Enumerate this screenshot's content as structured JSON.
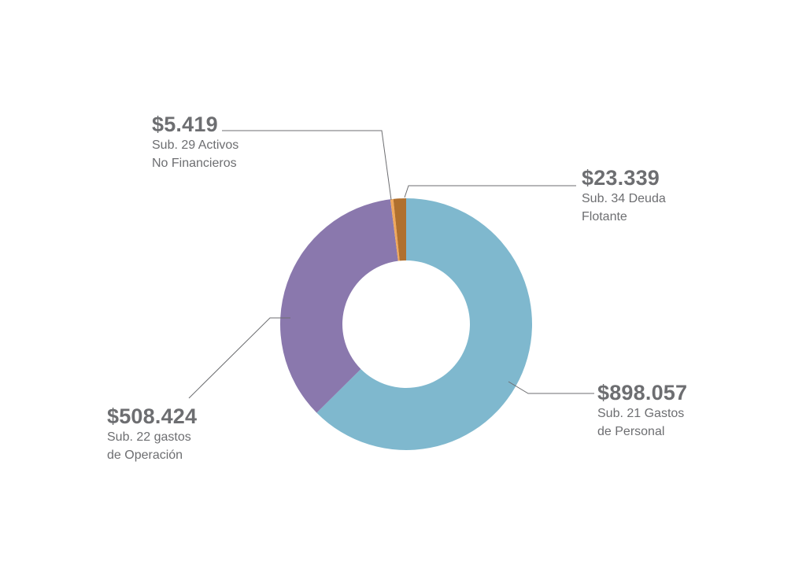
{
  "chart_data": {
    "type": "pie",
    "variant": "donut",
    "title": "",
    "slices": [
      {
        "value": 898057,
        "value_label": "$898.057",
        "line1": "Sub. 21 Gastos",
        "line2": "de Personal",
        "color": "#7fb8ce"
      },
      {
        "value": 508424,
        "value_label": "$508.424",
        "line1": "Sub. 22 gastos",
        "line2": "de Operación",
        "color": "#8a78ad"
      },
      {
        "value": 5419,
        "value_label": "$5.419",
        "line1": "Sub. 29 Activos",
        "line2": "No Financieros",
        "color": "#f0a85c"
      },
      {
        "value": 23339,
        "value_label": "$23.339",
        "line1": "Sub. 34 Deuda",
        "line2": "Flotante",
        "color": "#b0702e"
      }
    ],
    "legend": "none"
  }
}
